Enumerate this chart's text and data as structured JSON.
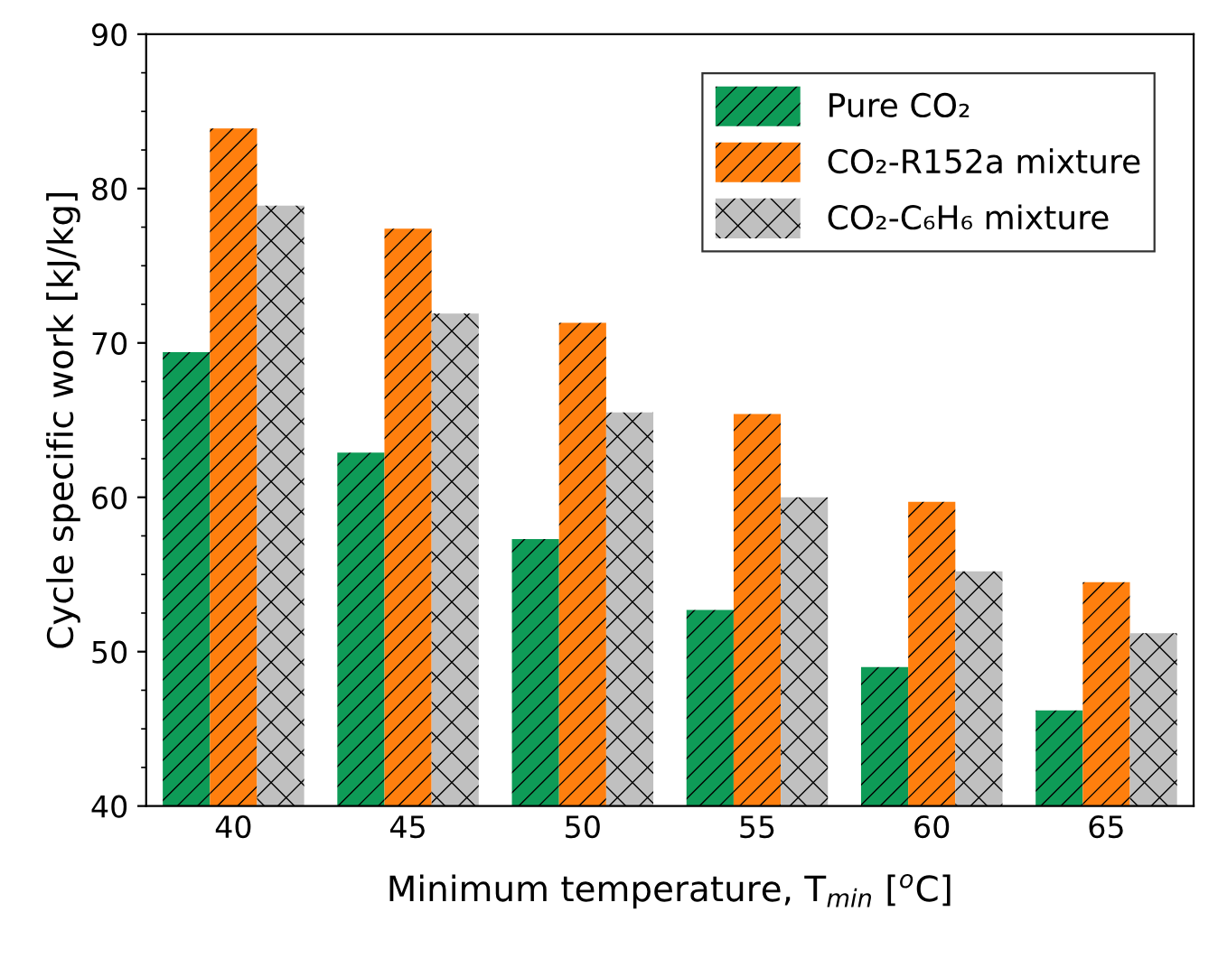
{
  "chart_data": {
    "type": "bar",
    "xlabel": "Minimum temperature, T$_{min}$ [$^{o}$C]",
    "ylabel": "Cycle specific work [kJ/kg]",
    "categories": [
      "40",
      "45",
      "50",
      "55",
      "60",
      "65"
    ],
    "series": [
      {
        "name": "Pure CO₂",
        "color": "#0e9b57",
        "values": [
          69.4,
          62.9,
          57.3,
          52.7,
          49.0,
          46.2
        ]
      },
      {
        "name": "CO₂-R152a mixture",
        "color": "#ff7f0e",
        "values": [
          83.9,
          77.4,
          71.3,
          65.4,
          59.7,
          54.5
        ]
      },
      {
        "name": "CO₂-C₆H₆ mixture",
        "color": "#c0c0c0",
        "values": [
          78.9,
          71.9,
          65.5,
          60.0,
          55.2,
          51.2
        ]
      }
    ],
    "ylim": [
      40,
      90
    ],
    "yticks": [
      40,
      50,
      60,
      70,
      80,
      90
    ],
    "legend": "top right",
    "grid": false
  }
}
